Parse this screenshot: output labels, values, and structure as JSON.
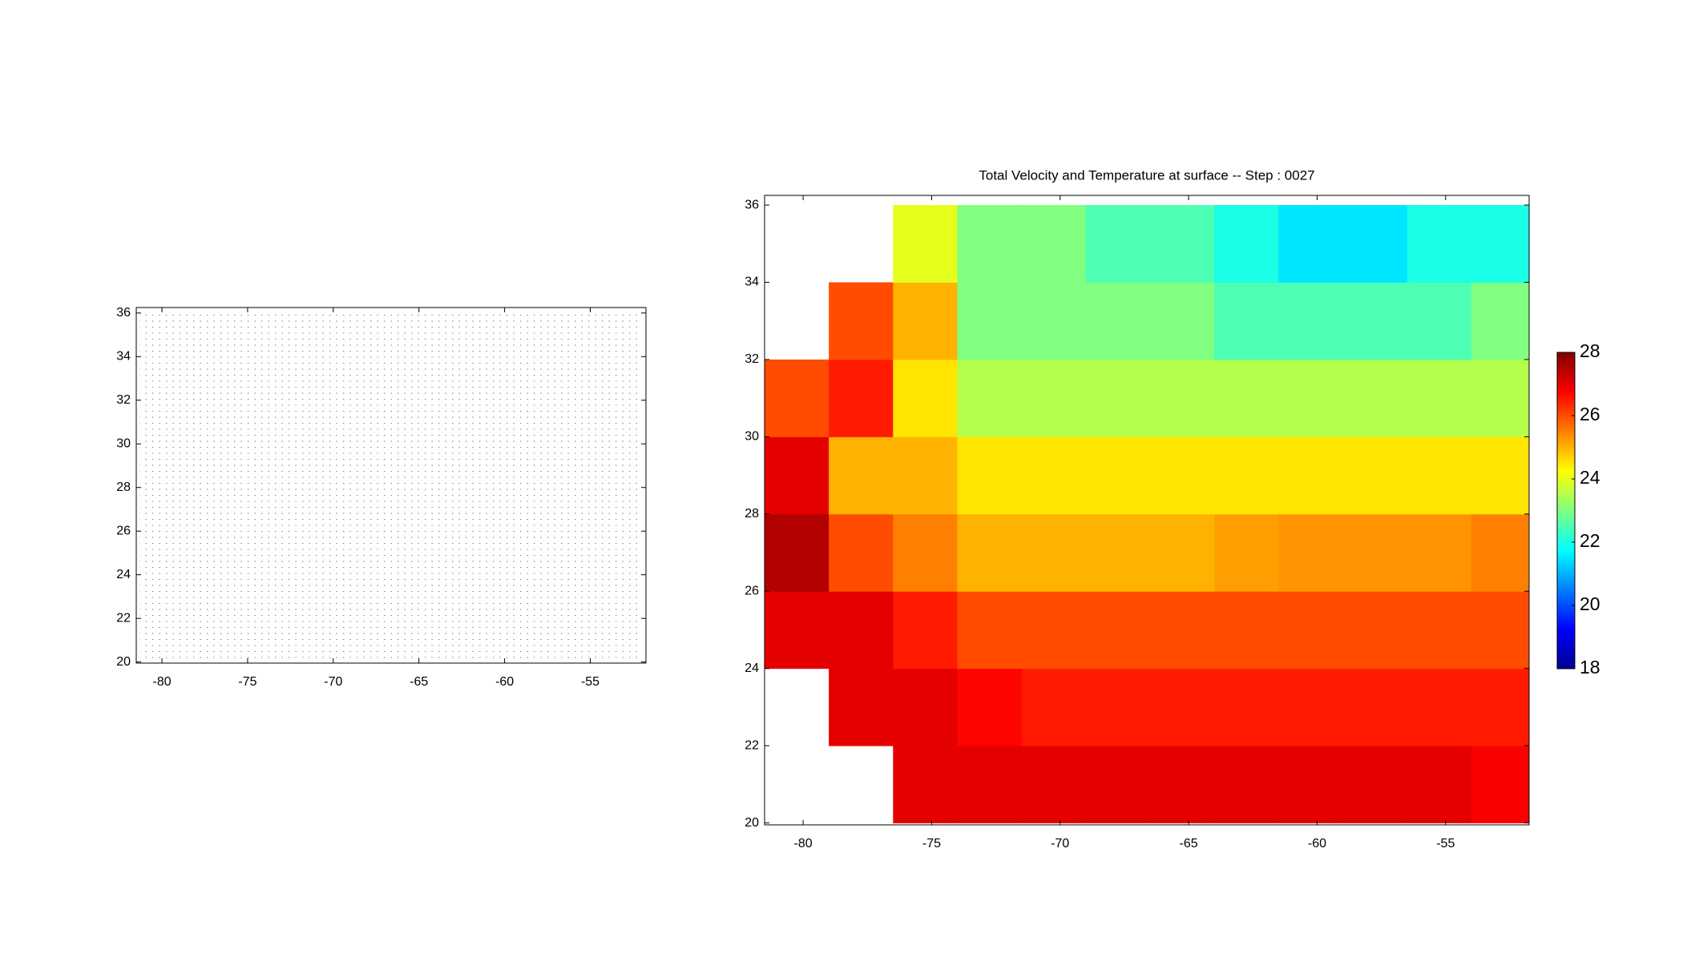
{
  "chart_data": [
    {
      "type": "quiver",
      "xlim": [
        -81.5,
        -51.75
      ],
      "ylim": [
        19.95,
        36.25
      ],
      "xticks": [
        -80,
        -75,
        -70,
        -65,
        -60,
        -55
      ],
      "yticks": [
        20,
        22,
        24,
        26,
        28,
        30,
        32,
        34,
        36
      ]
    },
    {
      "type": "heatmap",
      "title": "Total Velocity and Temperature at surface -- Step : 0027",
      "xlim": [
        -81.5,
        -51.75
      ],
      "ylim": [
        19.95,
        36.25
      ],
      "xticks": [
        -80,
        -75,
        -70,
        -65,
        -60,
        -55
      ],
      "yticks": [
        20,
        22,
        24,
        26,
        28,
        30,
        32,
        34,
        36
      ],
      "x": [
        -80.25,
        -77.75,
        -75.25,
        -72.75,
        -70.25,
        -67.75,
        -65.25,
        -62.75,
        -60.25,
        -57.75,
        -55.25,
        -52.75
      ],
      "y": [
        21,
        23,
        25,
        27,
        29,
        31,
        33,
        35
      ],
      "values": [
        [
          null,
          null,
          27,
          27,
          27,
          27,
          27,
          27,
          27,
          27,
          27,
          26.8
        ],
        [
          null,
          27,
          27,
          26.7,
          26.5,
          26.5,
          26.5,
          26.5,
          26.5,
          26.5,
          26.5,
          26.5
        ],
        [
          27,
          27,
          26.5,
          26,
          26,
          26,
          26,
          26,
          26,
          26,
          26,
          26
        ],
        [
          27.5,
          26,
          25.5,
          25,
          25,
          25,
          25,
          25.2,
          25.3,
          25.3,
          25.3,
          25.5
        ],
        [
          27,
          25,
          25,
          24.5,
          24.5,
          24.5,
          24.5,
          24.5,
          24.5,
          24.5,
          24.5,
          24.5
        ],
        [
          26,
          26.5,
          24.5,
          23.5,
          23.5,
          23.5,
          23.5,
          23.5,
          23.5,
          23.5,
          23.5,
          23.5
        ],
        [
          null,
          26,
          25,
          23,
          23,
          23,
          23,
          22.5,
          22.5,
          22.5,
          22.5,
          23
        ],
        [
          null,
          null,
          24,
          23,
          23,
          22.5,
          22.5,
          22,
          21.5,
          21.5,
          22,
          22
        ]
      ],
      "colormap": "jet",
      "clim": [
        18,
        28
      ],
      "cticks": [
        18,
        20,
        22,
        24,
        26,
        28
      ]
    }
  ]
}
